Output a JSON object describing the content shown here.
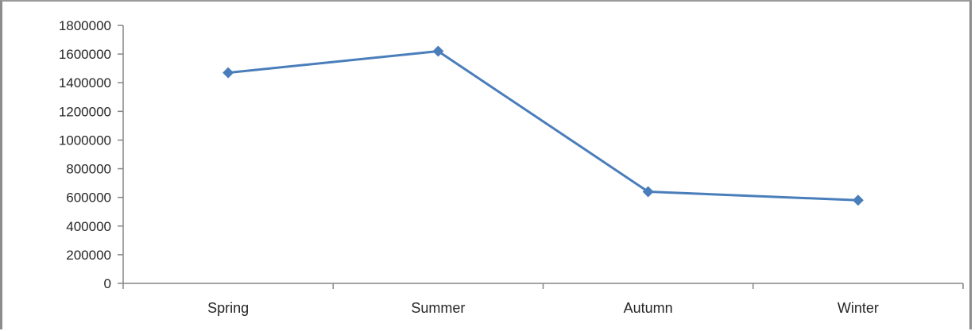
{
  "chart_data": {
    "type": "line",
    "title": "",
    "xlabel": "",
    "ylabel": "",
    "categories": [
      "Spring",
      "Summer",
      "Autumn",
      "Winter"
    ],
    "series": [
      {
        "values": [
          1470000,
          1620000,
          640000,
          580000
        ]
      }
    ],
    "ylim": [
      0,
      1800000
    ],
    "yticks": [
      0,
      200000,
      400000,
      600000,
      800000,
      1000000,
      1200000,
      1400000,
      1600000,
      1800000
    ],
    "ytick_labels": [
      "0",
      "200000",
      "400000",
      "600000",
      "800000",
      "1000000",
      "1200000",
      "1400000",
      "1600000",
      "1800000"
    ],
    "grid": false,
    "legend": "none",
    "marker": "diamond",
    "colors": {
      "series": "#4a7ebb",
      "axis": "#868686",
      "text": "#262626"
    }
  }
}
